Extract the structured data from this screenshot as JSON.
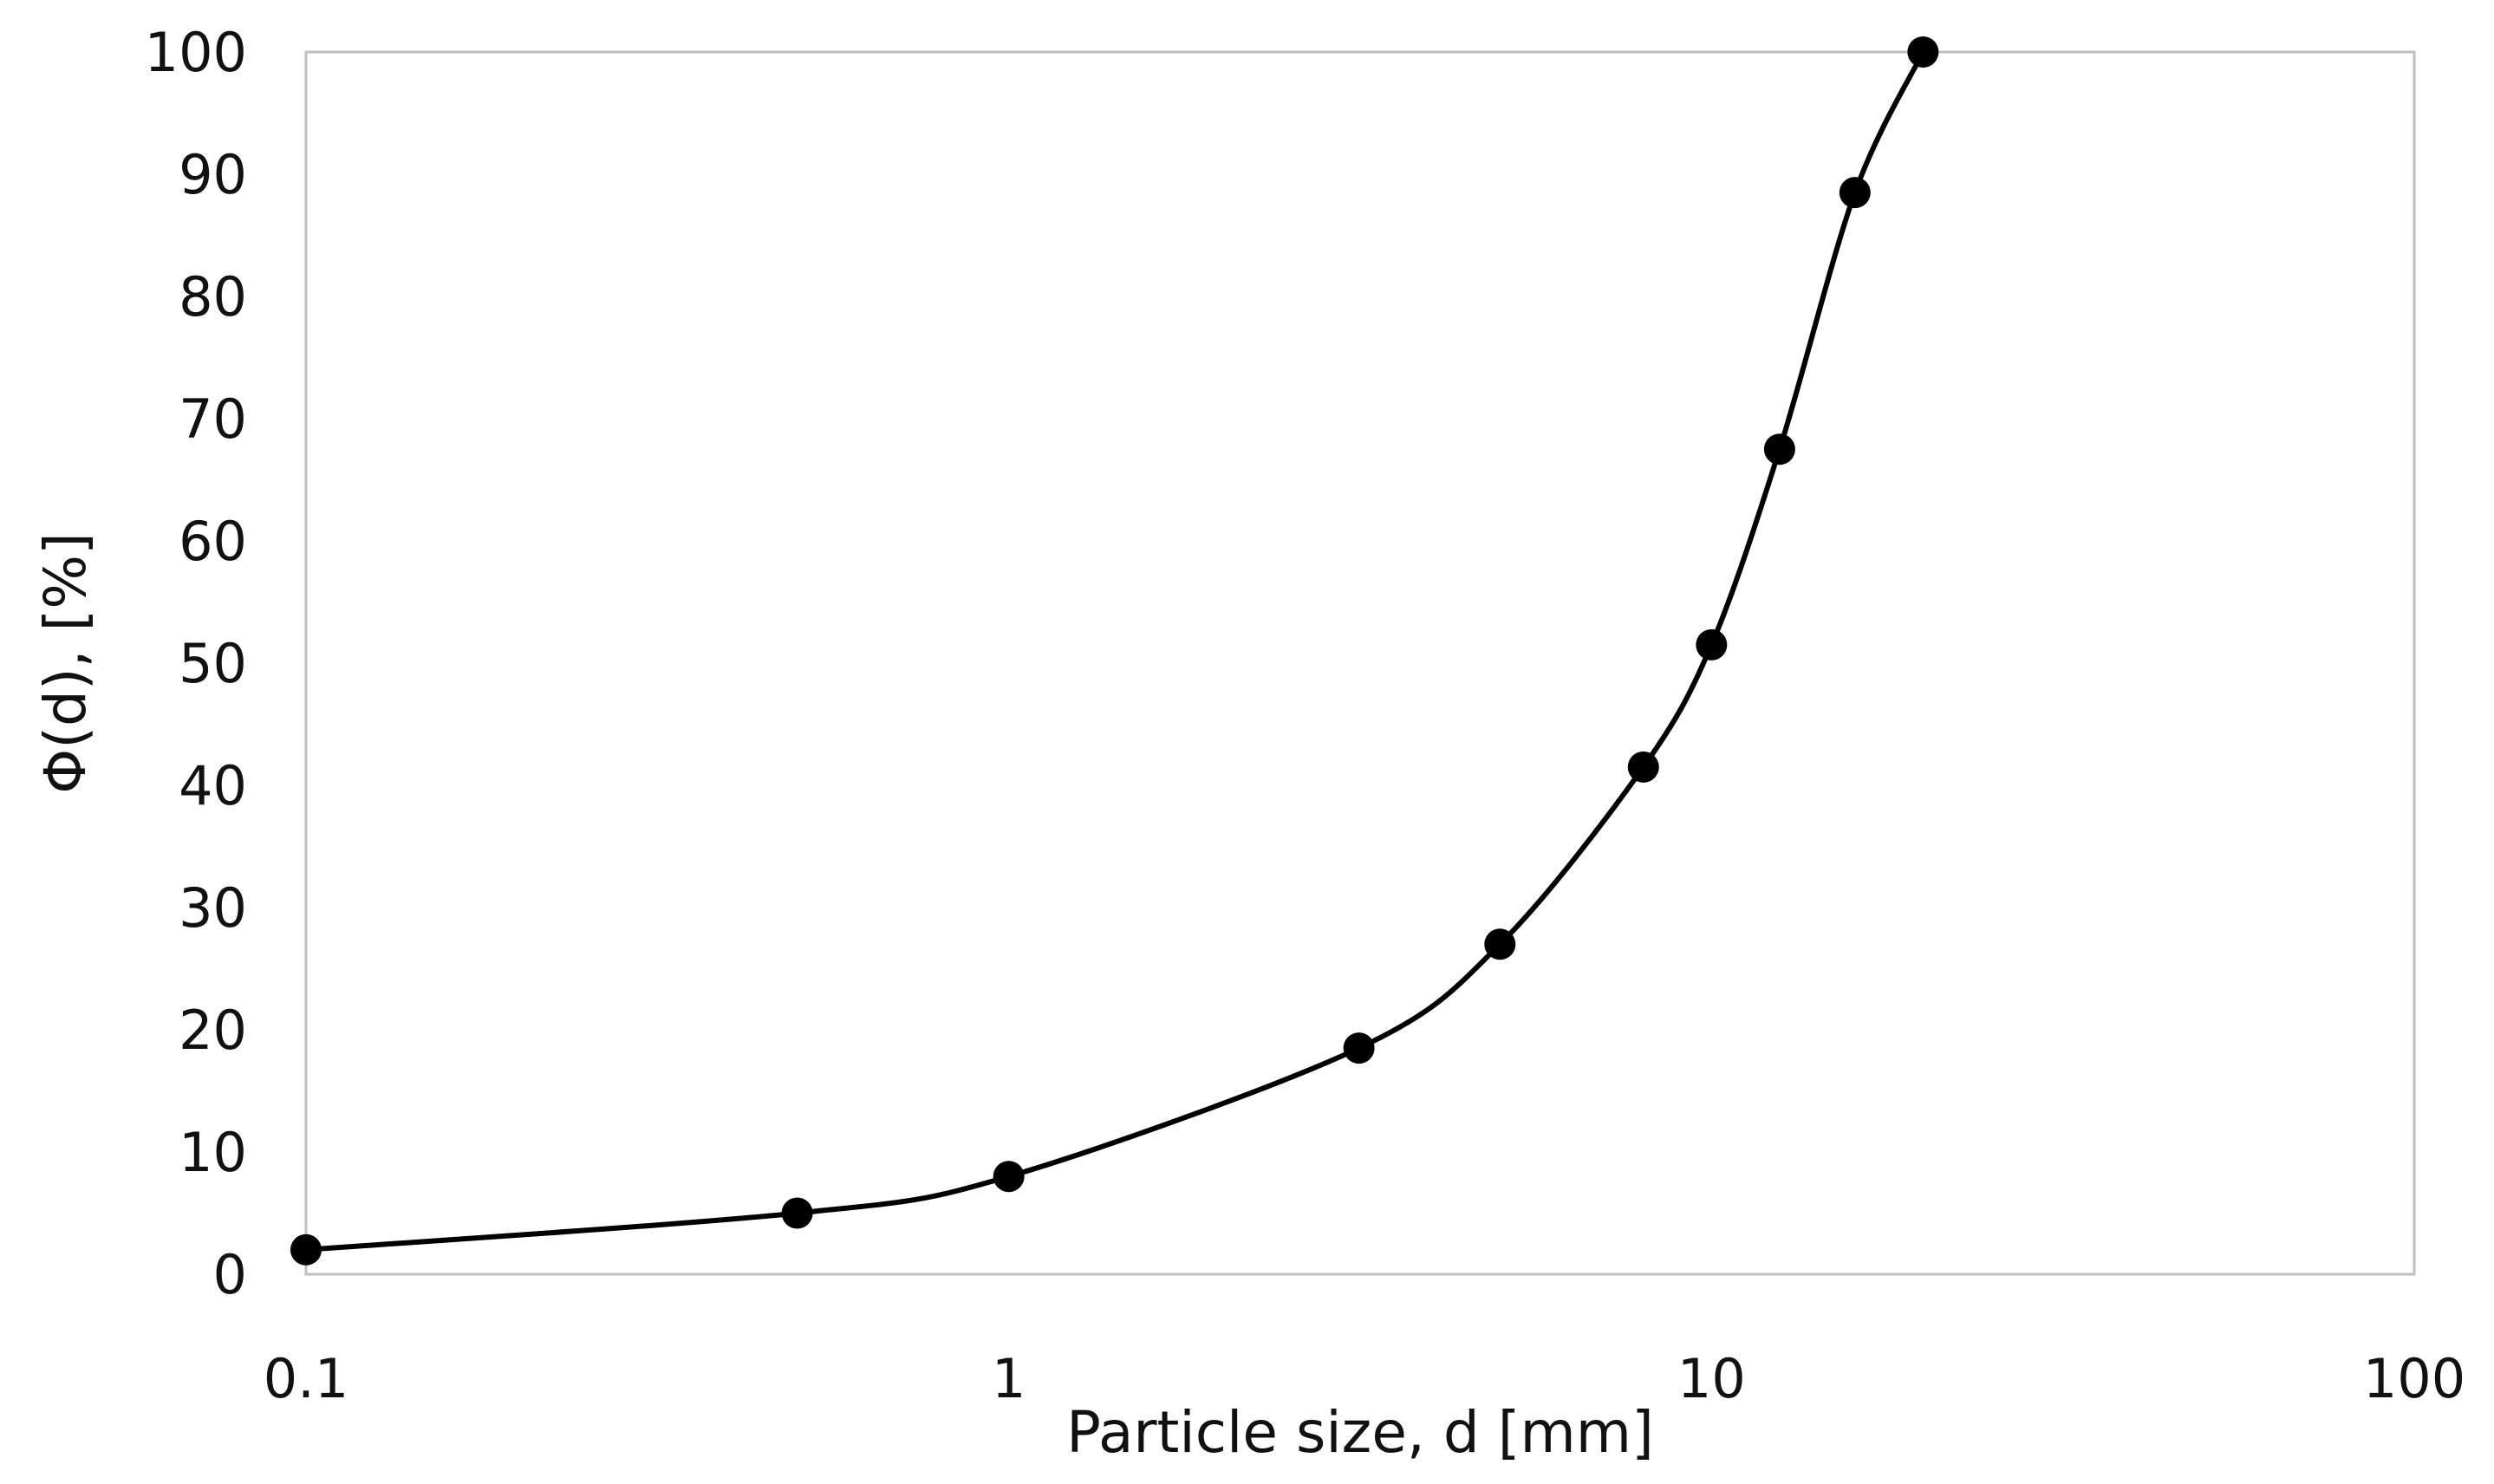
{
  "chart_data": {
    "type": "line",
    "title": "",
    "xlabel": "Particle size, d [mm]",
    "ylabel": "Φ(d), [%]",
    "x_scale": "log",
    "xlim": [
      0.1,
      100
    ],
    "ylim": [
      0,
      100
    ],
    "x_ticks": [
      0.1,
      1,
      10,
      100
    ],
    "x_tick_labels": [
      "0.1",
      "1",
      "10",
      "100"
    ],
    "y_ticks": [
      0,
      10,
      20,
      30,
      40,
      50,
      60,
      70,
      80,
      90,
      100
    ],
    "y_tick_labels": [
      "0",
      "10",
      "20",
      "30",
      "40",
      "50",
      "60",
      "70",
      "80",
      "90",
      "100"
    ],
    "grid": false,
    "legend": "none",
    "series": [
      {
        "color": "#000000",
        "marker": "circle",
        "smooth": true,
        "x": [
          0.1,
          0.5,
          1,
          3.15,
          5,
          8,
          10,
          12.5,
          16,
          20
        ],
        "y": [
          2,
          5,
          8,
          18.5,
          27,
          41.5,
          51.5,
          67.5,
          88.5,
          100
        ]
      }
    ]
  }
}
